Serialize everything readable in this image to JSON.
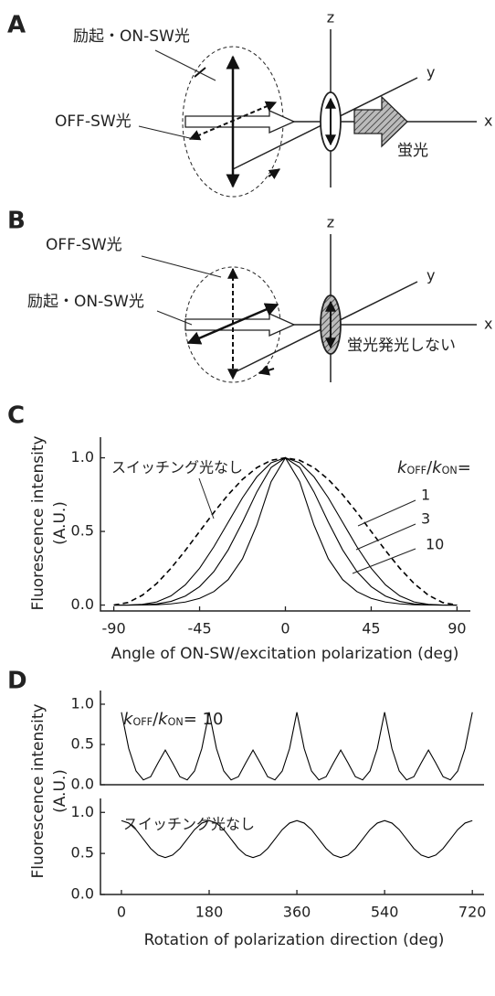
{
  "panels": {
    "A": {
      "letter": "A",
      "excitation_label": "励起・ON-SW光",
      "off_label": "OFF-SW光",
      "fluorescence_label": "蛍光",
      "axes": [
        "z",
        "y",
        "x"
      ]
    },
    "B": {
      "letter": "B",
      "off_label": "OFF-SW光",
      "excitation_label": "励起・ON-SW光",
      "fluorescence_label": "蛍光発光しない",
      "axes": [
        "z",
        "y",
        "x"
      ]
    }
  },
  "chart_data": [
    {
      "type": "line",
      "panel_label": "C",
      "xlabel": "Angle of ON-SW/excitation polarization (deg)",
      "ylabel": [
        "Fluorescence intensity",
        "(A.U.)"
      ],
      "ratio_label": [
        "k",
        "OFF",
        "/",
        "k",
        "ON",
        "="
      ],
      "x": [
        -90,
        -82.5,
        -75,
        -67.5,
        -60,
        -52.5,
        -45,
        -37.5,
        -30,
        -22.5,
        -15,
        -7.5,
        0,
        7.5,
        15,
        22.5,
        30,
        37.5,
        45,
        52.5,
        60,
        67.5,
        75,
        82.5,
        90
      ],
      "series": [
        {
          "name": "スイッチング光なし",
          "color": "#000000",
          "style": "dashed",
          "values": [
            0,
            0.01704,
            0.06699,
            0.14645,
            0.25,
            0.37059,
            0.5,
            0.62941,
            0.75,
            0.85355,
            0.93301,
            0.98296,
            1,
            0.98296,
            0.93301,
            0.85355,
            0.75,
            0.62941,
            0.5,
            0.37059,
            0.25,
            0.14645,
            0.06699,
            0.01704,
            0
          ]
        },
        {
          "name": "1",
          "color": "#000000",
          "style": "solid",
          "values": [
            0,
            0.0003,
            0.0045,
            0.0214,
            0.0625,
            0.1373,
            0.25,
            0.3962,
            0.5625,
            0.7286,
            0.8705,
            0.9662,
            1,
            0.9662,
            0.8705,
            0.7286,
            0.5625,
            0.3962,
            0.25,
            0.1373,
            0.0625,
            0.0214,
            0.0045,
            0.0003,
            0
          ]
        },
        {
          "name": "3",
          "color": "#000000",
          "style": "solid",
          "values": [
            0,
            0.0001,
            0.0016,
            0.0079,
            0.025,
            0.0608,
            0.125,
            0.2275,
            0.375,
            0.5635,
            0.7677,
            0.9344,
            1,
            0.9344,
            0.7677,
            0.5635,
            0.375,
            0.2275,
            0.125,
            0.0608,
            0.025,
            0.0079,
            0.0016,
            0.0001,
            0
          ]
        },
        {
          "name": "10",
          "color": "#000000",
          "style": "solid",
          "values": [
            0,
            0,
            0.0005,
            0.0025,
            0.0081,
            0.0206,
            0.0455,
            0.0914,
            0.1731,
            0.3143,
            0.5431,
            0.8377,
            1,
            0.8377,
            0.5431,
            0.3143,
            0.1731,
            0.0914,
            0.0455,
            0.0206,
            0.0081,
            0.0025,
            0.0005,
            0,
            0
          ]
        }
      ],
      "xlim": [
        -97,
        97
      ],
      "ylim": [
        -0.04,
        1.14
      ],
      "xticks": [
        -90,
        -45,
        0,
        45,
        90
      ],
      "yticks": [
        {
          "value": 0,
          "label": "0.0"
        },
        {
          "value": 0.5,
          "label": "0.5"
        },
        {
          "value": 1,
          "label": "1.0"
        }
      ]
    },
    {
      "type": "line",
      "panel_label": "D",
      "ylabel": [
        "Fluorescence intensity",
        "(A.U.)"
      ],
      "ratio_label": [
        "k",
        "OFF",
        "/",
        "k",
        "ON",
        "= 10"
      ],
      "x": [
        0,
        15,
        30,
        45,
        60,
        75,
        90,
        105,
        120,
        135,
        150,
        165,
        180,
        195,
        210,
        225,
        240,
        255,
        270,
        285,
        300,
        315,
        330,
        345,
        360,
        375,
        390,
        405,
        420,
        435,
        450,
        465,
        480,
        495,
        510,
        525,
        540,
        555,
        570,
        585,
        600,
        615,
        630,
        645,
        660,
        675,
        690,
        705,
        720
      ],
      "series": [
        {
          "color": "#000000",
          "style": "solid",
          "values": [
            0.9,
            0.45,
            0.17,
            0.06,
            0.1,
            0.27,
            0.43,
            0.27,
            0.1,
            0.06,
            0.17,
            0.45,
            0.9,
            0.45,
            0.17,
            0.06,
            0.1,
            0.27,
            0.43,
            0.27,
            0.1,
            0.06,
            0.17,
            0.45,
            0.9,
            0.45,
            0.17,
            0.06,
            0.1,
            0.27,
            0.43,
            0.27,
            0.1,
            0.06,
            0.17,
            0.45,
            0.9,
            0.45,
            0.17,
            0.06,
            0.1,
            0.27,
            0.43,
            0.27,
            0.1,
            0.06,
            0.17,
            0.45,
            0.9
          ]
        }
      ],
      "xlim": [
        -43,
        744
      ],
      "ylim": [
        0,
        1.17
      ],
      "yticks": [
        {
          "value": 0,
          "label": "0.0"
        },
        {
          "value": 0.5,
          "label": "0.5"
        },
        {
          "value": 1,
          "label": "1.0"
        }
      ]
    },
    {
      "type": "line",
      "annotation": "スイッチング光なし",
      "xlabel": "Rotation of polarization direction (deg)",
      "x": [
        0,
        15,
        30,
        45,
        60,
        75,
        90,
        105,
        120,
        135,
        150,
        165,
        180,
        195,
        210,
        225,
        240,
        255,
        270,
        285,
        300,
        315,
        330,
        345,
        360,
        375,
        390,
        405,
        420,
        435,
        450,
        465,
        480,
        495,
        510,
        525,
        540,
        555,
        570,
        585,
        600,
        615,
        630,
        645,
        660,
        675,
        690,
        705,
        720
      ],
      "series": [
        {
          "color": "#000000",
          "style": "solid",
          "values": [
            0.9,
            0.87,
            0.79,
            0.675,
            0.56,
            0.48,
            0.45,
            0.48,
            0.56,
            0.675,
            0.79,
            0.87,
            0.9,
            0.87,
            0.79,
            0.675,
            0.56,
            0.48,
            0.45,
            0.48,
            0.56,
            0.675,
            0.79,
            0.87,
            0.9,
            0.87,
            0.79,
            0.675,
            0.56,
            0.48,
            0.45,
            0.48,
            0.56,
            0.675,
            0.79,
            0.87,
            0.9,
            0.87,
            0.79,
            0.675,
            0.56,
            0.48,
            0.45,
            0.48,
            0.56,
            0.675,
            0.79,
            0.87,
            0.9
          ]
        }
      ],
      "xlim": [
        -43,
        744
      ],
      "ylim": [
        0,
        1.17
      ],
      "xticks": [
        0,
        180,
        360,
        540,
        720
      ],
      "yticks": [
        {
          "value": 0,
          "label": "0.0"
        },
        {
          "value": 0.5,
          "label": "0.5"
        },
        {
          "value": 1,
          "label": "1.0"
        }
      ]
    }
  ]
}
